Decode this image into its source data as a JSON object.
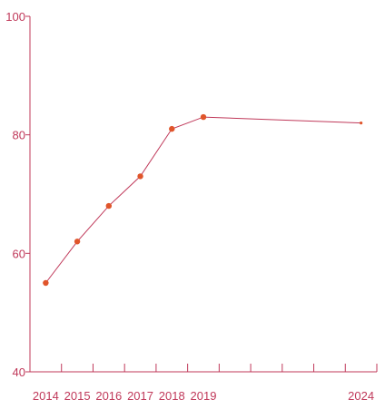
{
  "chart_data": {
    "type": "line",
    "x": [
      2014,
      2015,
      2016,
      2017,
      2018,
      2019,
      2024
    ],
    "x_tick_labels": [
      "2014",
      "2015",
      "2016",
      "2017",
      "2018",
      "2019",
      "2024"
    ],
    "series": [
      {
        "values": [
          55,
          62,
          68,
          73,
          81,
          83,
          82
        ]
      }
    ],
    "ylim": [
      40,
      100
    ],
    "y_ticks": [
      40,
      60,
      80,
      100
    ],
    "y_tick_labels": [
      "40",
      "60",
      "80",
      "100"
    ],
    "grid": false,
    "colors": {
      "axis": "#c0395a",
      "line": "#c0395a",
      "marker": "#e0552b"
    }
  }
}
